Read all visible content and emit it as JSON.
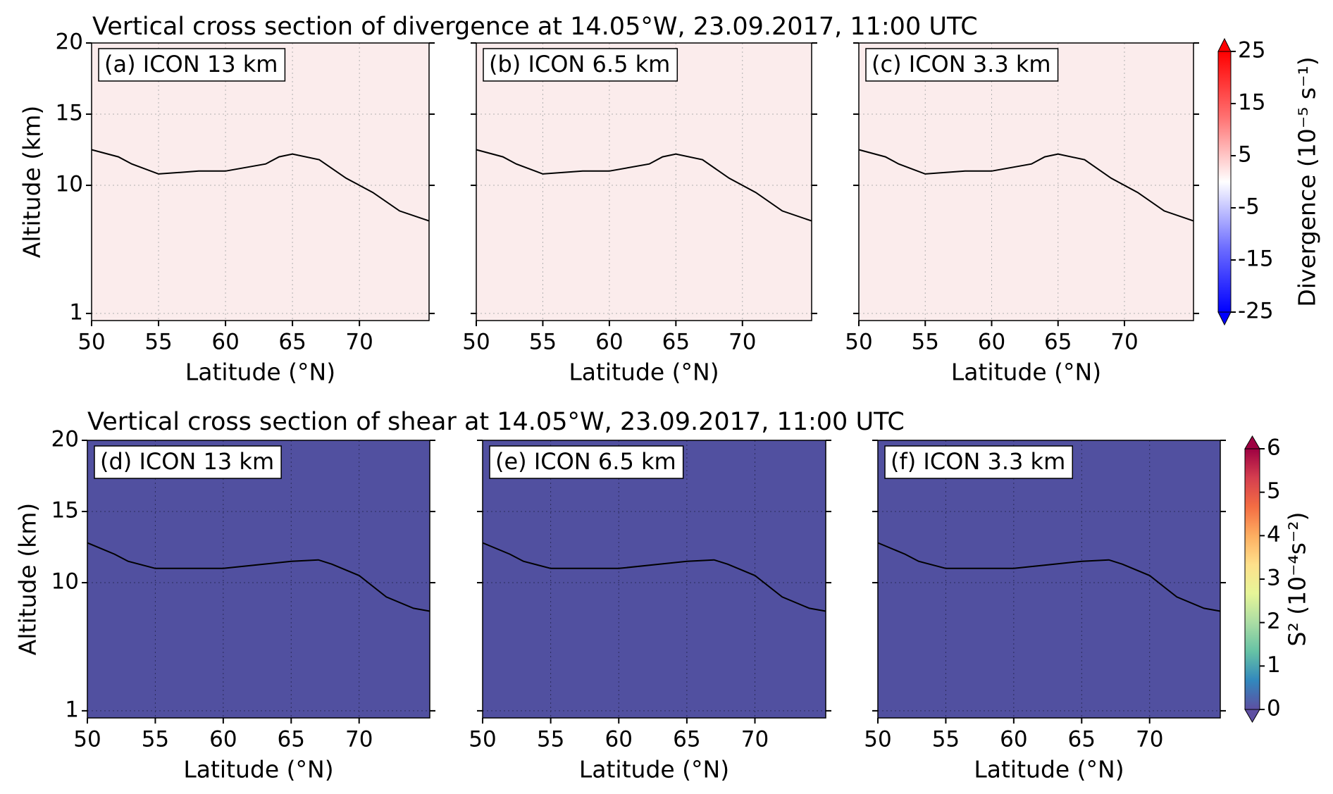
{
  "chart_data": [
    {
      "type": "heatmap",
      "title": "Vertical cross section of divergence at 14.05°W, 23.09.2017, 11:00 UTC",
      "background": "#fbecec",
      "grid_color": "#b0b0b0",
      "colorbar": {
        "label": "Divergence (10⁻⁵ s⁻¹)",
        "lim": [
          -25,
          25
        ],
        "ticks": [
          -25,
          -15,
          -5,
          5,
          15,
          25
        ],
        "colors": [
          "#0000ff",
          "#6f6fff",
          "#ffffff",
          "#ff7070",
          "#ff0000"
        ]
      },
      "panels": [
        {
          "label": "(a) ICON 13 km",
          "xlabel": "Latitude (°N)",
          "ylabel": "Altitude (km)",
          "xlim": [
            50,
            75.2
          ],
          "ylim": [
            0.5,
            20
          ],
          "xticks": [
            50,
            55,
            60,
            65,
            70
          ],
          "yticks": [
            1,
            10,
            15,
            20
          ],
          "contour": {
            "x": [
              50,
              52,
              53,
              55,
              58,
              60,
              63,
              64,
              65,
              67,
              69,
              71,
              73,
              75.2
            ],
            "y": [
              12.5,
              12,
              11.5,
              10.8,
              11,
              11,
              11.5,
              12,
              12.2,
              11.8,
              10.5,
              9.5,
              8.2,
              7.5
            ]
          }
        },
        {
          "label": "(b) ICON 6.5 km",
          "xlabel": "Latitude (°N)",
          "xlim": [
            50,
            75.2
          ],
          "ylim": [
            0.5,
            20
          ],
          "xticks": [
            50,
            55,
            60,
            65,
            70
          ],
          "yticks": [
            1,
            10,
            15,
            20
          ],
          "contour": {
            "x": [
              50,
              52,
              53,
              55,
              58,
              60,
              63,
              64,
              65,
              67,
              69,
              71,
              73,
              75.2
            ],
            "y": [
              12.5,
              12,
              11.5,
              10.8,
              11,
              11,
              11.5,
              12,
              12.2,
              11.8,
              10.5,
              9.5,
              8.2,
              7.5
            ]
          }
        },
        {
          "label": "(c) ICON 3.3 km",
          "xlabel": "Latitude (°N)",
          "xlim": [
            50,
            75.2
          ],
          "ylim": [
            0.5,
            20
          ],
          "xticks": [
            50,
            55,
            60,
            65,
            70
          ],
          "yticks": [
            1,
            10,
            15,
            20
          ],
          "contour": {
            "x": [
              50,
              52,
              53,
              55,
              58,
              60,
              63,
              64,
              65,
              67,
              69,
              71,
              73,
              75.2
            ],
            "y": [
              12.5,
              12,
              11.5,
              10.8,
              11,
              11,
              11.5,
              12,
              12.2,
              11.8,
              10.5,
              9.5,
              8.2,
              7.5
            ]
          }
        }
      ]
    },
    {
      "type": "heatmap",
      "title": "Vertical cross section of shear at 14.05°W, 23.09.2017, 11:00 UTC",
      "background": "#5150a0",
      "grid_color": "#2c2c5c",
      "colorbar": {
        "label": "S² (10⁻⁴s⁻²)",
        "lim": [
          0,
          6
        ],
        "ticks": [
          0,
          1,
          2,
          3,
          4,
          5,
          6
        ],
        "colors": [
          "#5e4fa2",
          "#3288bd",
          "#66c2a5",
          "#abdda4",
          "#e6f598",
          "#fee08b",
          "#fdae61",
          "#f46d43",
          "#d53e4f",
          "#9e0142"
        ]
      },
      "panels": [
        {
          "label": "(d) ICON 13 km",
          "xlabel": "Latitude (°N)",
          "ylabel": "Altitude (km)",
          "xlim": [
            50,
            75.2
          ],
          "ylim": [
            0.5,
            20
          ],
          "xticks": [
            50,
            55,
            60,
            65,
            70
          ],
          "yticks": [
            1,
            10,
            15,
            20
          ],
          "contour": {
            "x": [
              50,
              52,
              53,
              55,
              58,
              60,
              63,
              65,
              67,
              68,
              70,
              72,
              74,
              75.2
            ],
            "y": [
              12.8,
              12,
              11.5,
              11,
              11,
              11,
              11.3,
              11.5,
              11.6,
              11.3,
              10.5,
              9,
              8.2,
              8
            ]
          }
        },
        {
          "label": "(e) ICON 6.5 km",
          "xlabel": "Latitude (°N)",
          "xlim": [
            50,
            75.2
          ],
          "ylim": [
            0.5,
            20
          ],
          "xticks": [
            50,
            55,
            60,
            65,
            70
          ],
          "yticks": [
            1,
            10,
            15,
            20
          ],
          "contour": {
            "x": [
              50,
              52,
              53,
              55,
              58,
              60,
              63,
              65,
              67,
              68,
              70,
              72,
              74,
              75.2
            ],
            "y": [
              12.8,
              12,
              11.5,
              11,
              11,
              11,
              11.3,
              11.5,
              11.6,
              11.3,
              10.5,
              9,
              8.2,
              8
            ]
          }
        },
        {
          "label": "(f) ICON 3.3 km",
          "xlabel": "Latitude (°N)",
          "xlim": [
            50,
            75.2
          ],
          "ylim": [
            0.5,
            20
          ],
          "xticks": [
            50,
            55,
            60,
            65,
            70
          ],
          "yticks": [
            1,
            10,
            15,
            20
          ],
          "contour": {
            "x": [
              50,
              52,
              53,
              55,
              58,
              60,
              63,
              65,
              67,
              68,
              70,
              72,
              74,
              75.2
            ],
            "y": [
              12.8,
              12,
              11.5,
              11,
              11,
              11,
              11.3,
              11.5,
              11.6,
              11.3,
              10.5,
              9,
              8.2,
              8
            ]
          }
        }
      ]
    }
  ]
}
